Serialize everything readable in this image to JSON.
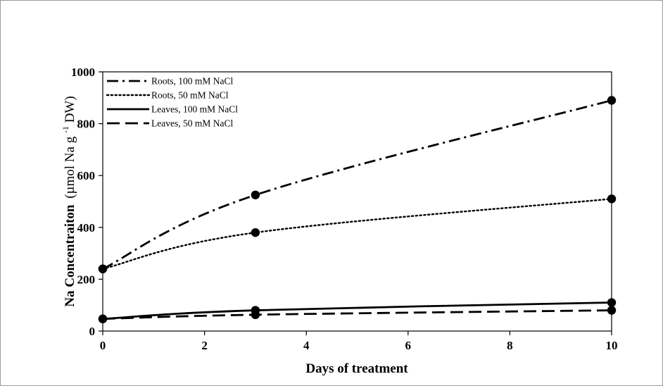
{
  "chart_data": {
    "type": "line",
    "x_axis": {
      "label": "Days of treatment",
      "range": [
        0,
        10
      ],
      "ticks": [
        0,
        2,
        4,
        6,
        8,
        10
      ]
    },
    "y_axis": {
      "label_parts": {
        "main": "Na Concentraiton",
        "unit_start": "(µmol Na g",
        "sup": "-1",
        "unit_end": " DW)"
      },
      "range": [
        0,
        1000
      ],
      "ticks": [
        0,
        200,
        400,
        600,
        800,
        1000
      ]
    },
    "grid": false,
    "legend_position": "top-left",
    "series": [
      {
        "name": "Roots, 100 mM NaCl",
        "style": "dash-dot",
        "points": [
          [
            0,
            240
          ],
          [
            3,
            525
          ],
          [
            10,
            890
          ]
        ]
      },
      {
        "name": "Roots, 50 mM NaCl",
        "style": "dotted",
        "points": [
          [
            0,
            240
          ],
          [
            3,
            380
          ],
          [
            10,
            510
          ]
        ]
      },
      {
        "name": "Leaves, 100 mM NaCl",
        "style": "solid",
        "points": [
          [
            0,
            47
          ],
          [
            3,
            80
          ],
          [
            10,
            110
          ]
        ]
      },
      {
        "name": "Leaves, 50 mM NaCl",
        "style": "dashed",
        "points": [
          [
            0,
            47
          ],
          [
            3,
            63
          ],
          [
            10,
            80
          ]
        ]
      }
    ],
    "line_color": "#000000"
  }
}
